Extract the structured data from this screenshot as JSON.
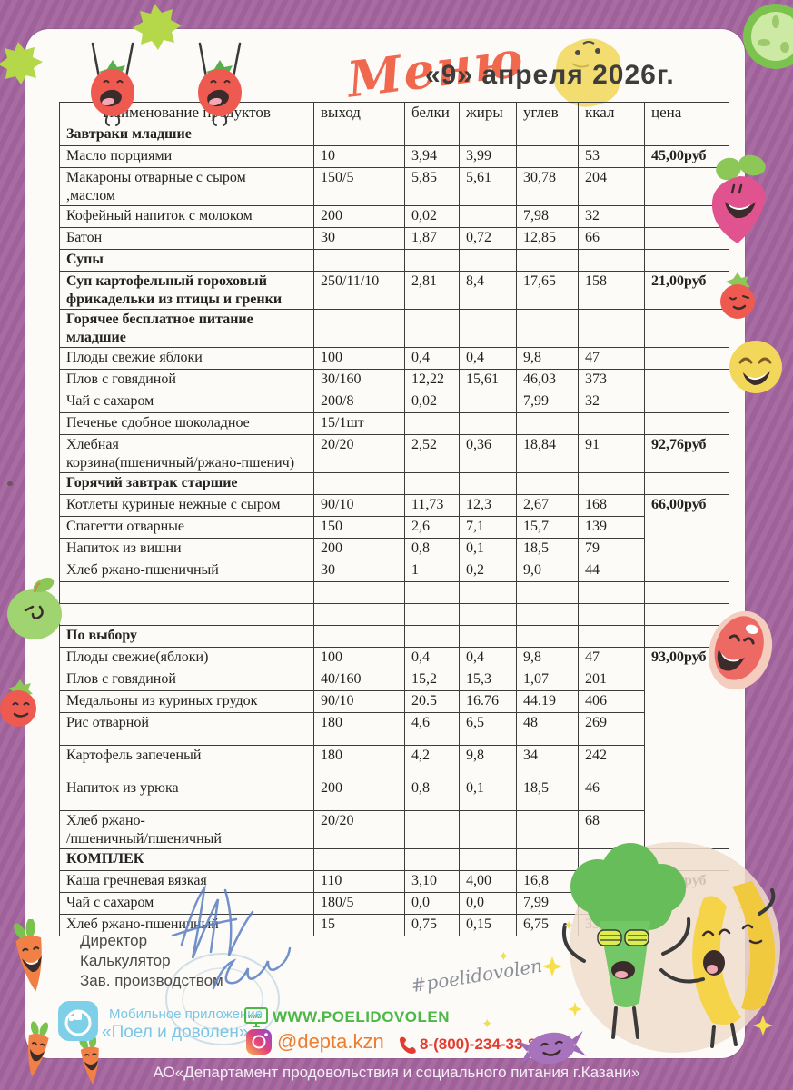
{
  "header": {
    "script_title": "Меню",
    "date": "«9» апреля  2026г."
  },
  "table": {
    "columns": [
      "Наименование продуктов",
      "выход",
      "белки",
      "жиры",
      "углев",
      "ккал",
      "цена"
    ],
    "rows": [
      {
        "section": true,
        "name": "Завтраки младшие",
        "price": ""
      },
      {
        "name": "Масло порциями",
        "out": "10",
        "protein": "3,94",
        "fat": "3,99",
        "carb": "",
        "kcal": "53",
        "price": "45,00руб"
      },
      {
        "name": "Макароны отварные с сыром\n,маслом",
        "out": "150/5",
        "protein": "5,85",
        "fat": "5,61",
        "carb": "30,78",
        "kcal": "204",
        "price": ""
      },
      {
        "name": "Кофейный напиток с молоком",
        "out": "200",
        "protein": "0,02",
        "fat": "",
        "carb": "7,98",
        "kcal": "32",
        "price": ""
      },
      {
        "name": "Батон",
        "out": "30",
        "protein": "1,87",
        "fat": "0,72",
        "carb": "12,85",
        "kcal": "66",
        "price": ""
      },
      {
        "section": true,
        "name": "Супы",
        "price": ""
      },
      {
        "bold": true,
        "name": "Суп картофельный гороховый\nфрикадельки из птицы и гренки",
        "out": "250/11/10",
        "protein": "2,81",
        "fat": "8,4",
        "carb": "17,65",
        "kcal": "158",
        "price": "21,00руб"
      },
      {
        "section": true,
        "name": "Горячее бесплатное питание\nмладшие",
        "price": ""
      },
      {
        "name": "Плоды свежие яблоки",
        "out": "100",
        "protein": "0,4",
        "fat": "0,4",
        "carb": "9,8",
        "kcal": "47",
        "price": ""
      },
      {
        "name": "Плов  с говядиной",
        "out": "30/160",
        "protein": "12,22",
        "fat": "15,61",
        "carb": "46,03",
        "kcal": "373",
        "price": ""
      },
      {
        "name": "Чай с сахаром",
        "out": "200/8",
        "protein": "0,02",
        "fat": "",
        "carb": "7,99",
        "kcal": "32",
        "price": ""
      },
      {
        "name": "Печенье сдобное шоколадное",
        "out": "15/1шт",
        "protein": "",
        "fat": "",
        "carb": "",
        "kcal": "",
        "price": ""
      },
      {
        "name": "Хлебная\nкорзина(пшеничный/ржано-пшенич)",
        "out": "20/20",
        "protein": "2,52",
        "fat": "0,36",
        "carb": "18,84",
        "kcal": "91",
        "price": "92,76руб"
      },
      {
        "section": true,
        "name": "Горячий завтрак старшие",
        "price": ""
      },
      {
        "name": "Котлеты куриные нежные с сыром",
        "out": "90/10",
        "protein": "11,73",
        "fat": "12,3",
        "carb": "2,67",
        "kcal": "168",
        "price": "66,00руб",
        "price_span": 4
      },
      {
        "name": "Спагетти отварные",
        "out": "150",
        "protein": "2,6",
        "fat": "7,1",
        "carb": "15,7",
        "kcal": "139"
      },
      {
        "name": "Напиток из вишни",
        "out": "200",
        "protein": "0,8",
        "fat": "0,1",
        "carb": "18,5",
        "kcal": "79"
      },
      {
        "name": "Хлеб ржано-пшеничный",
        "out": "30",
        "protein": "1",
        "fat": "0,2",
        "carb": "9,0",
        "kcal": "44"
      },
      {
        "name": "",
        "out": "",
        "protein": "",
        "fat": "",
        "carb": "",
        "kcal": "",
        "price": ""
      },
      {
        "name": "",
        "out": "",
        "protein": "",
        "fat": "",
        "carb": "",
        "kcal": "",
        "price": ""
      },
      {
        "section": true,
        "name": "По выбору",
        "price": ""
      },
      {
        "name": "Плоды свежие(яблоки)",
        "out": "100",
        "protein": "0,4",
        "fat": "0,4",
        "carb": "9,8",
        "kcal": "47",
        "price": "93,00руб",
        "price_span": 7
      },
      {
        "name": "Плов с говядиной",
        "out": "40/160",
        "protein": "15,2",
        "fat": "15,3",
        "carb": "1,07",
        "kcal": "201"
      },
      {
        "name": "Медальоны  из куриных грудок",
        "out": "90/10",
        "protein": "20.5",
        "fat": "16.76",
        "carb": "44.19",
        "kcal": "406"
      },
      {
        "tall": true,
        "name": "Рис отварной",
        "out": "180",
        "protein": "4,6",
        "fat": "6,5",
        "carb": "48",
        "kcal": "269"
      },
      {
        "tall": true,
        "name": "Картофель запеченый",
        "out": "180",
        "protein": "4,2",
        "fat": "9,8",
        "carb": "34",
        "kcal": "242"
      },
      {
        "tall": true,
        "name": "Напиток из урюка",
        "out": "200",
        "protein": "0,8",
        "fat": "0,1",
        "carb": "18,5",
        "kcal": "46"
      },
      {
        "name": "Хлеб ржано-\n/пшеничный/пшеничный",
        "out": "20/20",
        "protein": "",
        "fat": "",
        "carb": "",
        "kcal": "68"
      },
      {
        "section": true,
        "name": "КОМПЛЕК",
        "price": ""
      },
      {
        "name": "Каша гречневая вязкая",
        "out": "110",
        "protein": "3,10",
        "fat": "4,00",
        "carb": "16,8",
        "kcal": "116",
        "price": "10,70руб",
        "price_span": 3
      },
      {
        "name": "Чай с сахаром",
        "out": "180/5",
        "protein": "0,0",
        "fat": "0,0",
        "carb": "7,99",
        "kcal": "32"
      },
      {
        "name": "Хлеб ржано-пшеничный",
        "out": "15",
        "protein": "0,75",
        "fat": "0,15",
        "carb": "6,75",
        "kcal": "33"
      }
    ]
  },
  "signature_block": {
    "labels": [
      "Директор",
      "Калькулятор",
      "Зав. производством"
    ]
  },
  "hashtag": "#poelidovolen",
  "contacts": {
    "app_line1": "Мобильное приложение",
    "app_line2": "«Поел и доволен»",
    "website": "WWW.POELIDOVOLEN",
    "instagram": "@depta.kzn",
    "phone": "8-(800)-234-33-88"
  },
  "footer": "АО«Департамент продовольствия и социального питания г.Казани»",
  "colors": {
    "frame_purple": "#a3649e",
    "title_coral": "#f0694f",
    "website_green": "#4db848",
    "instagram_orange": "#ed7d31",
    "phone_red": "#e23b30",
    "app_blue": "#79c6e6",
    "signature_blue": "#5b7fc4",
    "cheese_yellow": "#f3dd70"
  },
  "icons": [
    "tomato-icon",
    "cheese-icon",
    "splat-icon",
    "cucumber-icon",
    "radish-icon",
    "smiley-icon",
    "apple-icon",
    "steak-icon",
    "broccoli-icon",
    "banana-icon",
    "candy-icon",
    "carrot-icon",
    "app-icon",
    "monitor-icon",
    "instagram-icon",
    "phone-icon",
    "stamp-icon",
    "signature-scribble"
  ]
}
